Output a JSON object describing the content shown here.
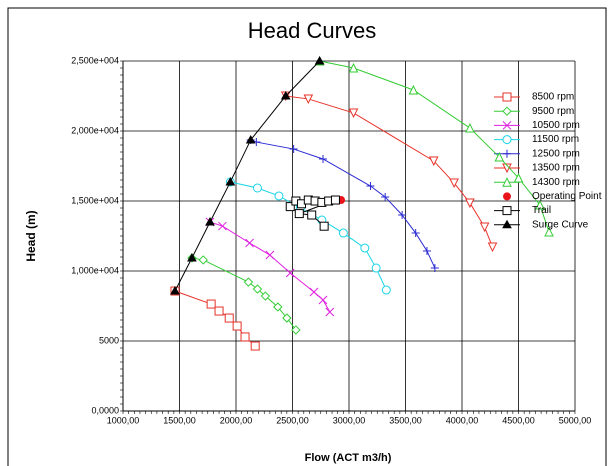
{
  "chart_data": {
    "type": "line",
    "title": "Head Curves",
    "xlabel": "Flow (ACT  m3/h)",
    "ylabel": "Head (m)",
    "xlim": [
      1000,
      5000
    ],
    "ylim": [
      0,
      25000
    ],
    "xticks": [
      {
        "value": 1000,
        "label": "1000,00"
      },
      {
        "value": 1500,
        "label": "1500,00"
      },
      {
        "value": 2000,
        "label": "2000,00"
      },
      {
        "value": 2500,
        "label": "2500,00"
      },
      {
        "value": 3000,
        "label": "3000,00"
      },
      {
        "value": 3500,
        "label": "3500,00"
      },
      {
        "value": 4000,
        "label": "4000,00"
      },
      {
        "value": 4500,
        "label": "4500,00"
      },
      {
        "value": 5000,
        "label": "5000,00"
      }
    ],
    "yticks": [
      {
        "value": 0,
        "label": "0,0000"
      },
      5000,
      {
        "value": 10000,
        "label": "1,000e+004"
      },
      {
        "value": 15000,
        "label": "1,500e+004"
      },
      {
        "value": 20000,
        "label": "2,000e+004"
      },
      {
        "value": 25000,
        "label": "2,500e+004"
      }
    ],
    "grid": true,
    "legend": "right",
    "series": [
      {
        "name": "8500 rpm",
        "color": "#e8322a",
        "marker": "square",
        "line": true,
        "x": [
          1460,
          1780,
          1850,
          1940,
          2010,
          2080,
          2170
        ],
        "values": [
          8570,
          7640,
          7140,
          6640,
          6070,
          5290,
          4640
        ]
      },
      {
        "name": "9500 rpm",
        "color": "#33cc33",
        "marker": "diamond",
        "line": true,
        "x": [
          1610,
          1710,
          2110,
          2190,
          2260,
          2370,
          2450,
          2530
        ],
        "values": [
          10930,
          10790,
          9210,
          8710,
          8210,
          7430,
          6640,
          5790
        ]
      },
      {
        "name": "10500 rpm",
        "color": "#e020e0",
        "marker": "cross",
        "line": true,
        "x": [
          1770,
          1880,
          2120,
          2300,
          2480,
          2690,
          2770,
          2830
        ],
        "values": [
          13500,
          13210,
          12000,
          11140,
          9860,
          8500,
          7930,
          7070
        ]
      },
      {
        "name": "11500 rpm",
        "color": "#19d4e8",
        "marker": "circle",
        "line": true,
        "x": [
          1950,
          2190,
          2380,
          2570,
          2760,
          2950,
          3140,
          3240,
          3330
        ],
        "values": [
          16360,
          15930,
          15360,
          14500,
          13640,
          12710,
          11640,
          10210,
          8640
        ]
      },
      {
        "name": "12500 rpm",
        "color": "#2a2ad4",
        "marker": "plus",
        "line": true,
        "x": [
          2130,
          2180,
          2510,
          2770,
          3190,
          3320,
          3470,
          3590,
          3690,
          3760
        ],
        "values": [
          19360,
          19210,
          18710,
          18000,
          16070,
          15290,
          14000,
          12710,
          11430,
          10210
        ]
      },
      {
        "name": "13500 rpm",
        "color": "#e8322a",
        "marker": "tridown",
        "line": true,
        "x": [
          2440,
          2640,
          3040,
          3750,
          3930,
          4070,
          4200,
          4270
        ],
        "values": [
          22500,
          22290,
          21290,
          17860,
          16290,
          14860,
          13140,
          11710
        ]
      },
      {
        "name": "14300 rpm",
        "color": "#33cc33",
        "marker": "triup",
        "line": true,
        "x": [
          2740,
          3040,
          3570,
          4070,
          4330,
          4500,
          4690,
          4770
        ],
        "values": [
          25000,
          24500,
          22930,
          20210,
          18140,
          16640,
          14710,
          12790
        ]
      },
      {
        "name": "Operating Point",
        "color": "#e8141a",
        "marker": "dot",
        "line": false,
        "x": [
          2930
        ],
        "values": [
          15070
        ]
      },
      {
        "name": "Trail",
        "color": "#000000",
        "marker": "square",
        "line": true,
        "x": [
          2480,
          2530,
          2580,
          2640,
          2700,
          2760,
          2820,
          2880,
          2560,
          2670,
          2780
        ],
        "values": [
          14600,
          15000,
          14800,
          15070,
          15000,
          14900,
          15000,
          15070,
          14100,
          14000,
          13200
        ]
      },
      {
        "name": "Surge Curve",
        "color": "#000000",
        "marker": "filltri",
        "line": true,
        "x": [
          1460,
          1610,
          1770,
          1950,
          2130,
          2440,
          2740
        ],
        "values": [
          8570,
          10930,
          13500,
          16360,
          19360,
          22500,
          25000
        ]
      }
    ]
  }
}
